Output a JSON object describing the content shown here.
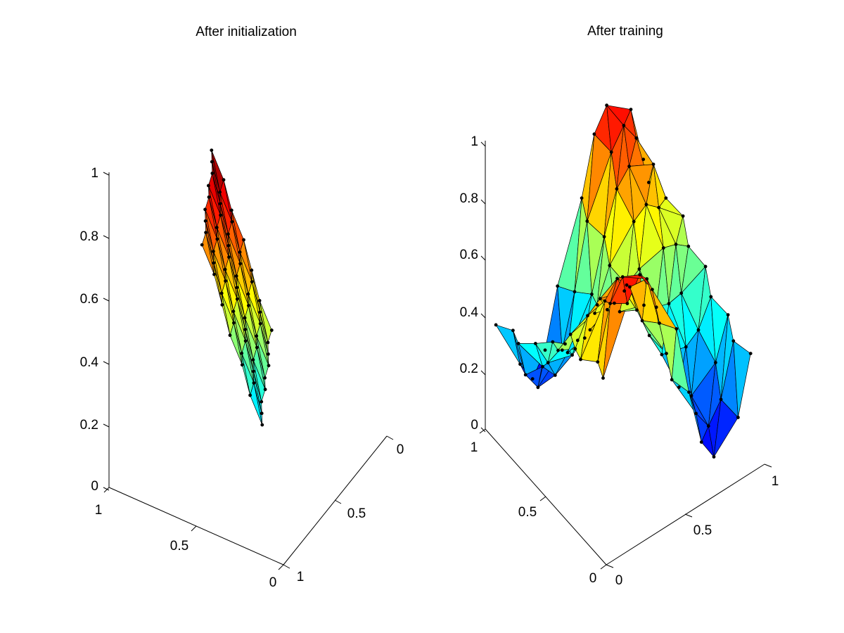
{
  "colors": {
    "background": "#ffffff",
    "axes": "#000000",
    "mesh_edges": "#000000",
    "nodes": "#000000"
  },
  "chart_data": [
    {
      "type": "surface",
      "title": "After initialization",
      "colormap": "jet",
      "grid": false,
      "xlim": [
        0,
        1
      ],
      "ylim": [
        0,
        1
      ],
      "zlim": [
        0,
        1
      ],
      "ticks": {
        "z": [
          "0",
          "0.2",
          "0.4",
          "0.6",
          "0.8",
          "1"
        ],
        "front_axis": [
          "1",
          "0.5",
          "0"
        ],
        "right_axis": [
          "1",
          "0.5",
          "0"
        ]
      },
      "mesh": {
        "rows": 9,
        "cols": 7,
        "start": [
          0.25,
          0.2,
          0.3
        ],
        "col_step": [
          0.0625,
          0.0125,
          0.075
        ],
        "row_step": [
          0.0,
          0.0125,
          0.0325
        ]
      }
    },
    {
      "type": "surface",
      "title": "After training",
      "colormap": "jet",
      "grid": false,
      "xlim": [
        0,
        1
      ],
      "ylim": [
        0,
        1
      ],
      "zlim": [
        0,
        1
      ],
      "ticks": {
        "z": [
          "0",
          "0.2",
          "0.4",
          "0.6",
          "0.8",
          "1"
        ],
        "front_axis": [
          "1",
          "0.5",
          "0"
        ],
        "right_axis": [
          "0",
          "0.5",
          "1"
        ]
      },
      "sheet": {
        "grid_points": 10,
        "function": "z = 0.5 + 0.4*sin(2*pi*x)*cos(pi*y)"
      }
    }
  ]
}
